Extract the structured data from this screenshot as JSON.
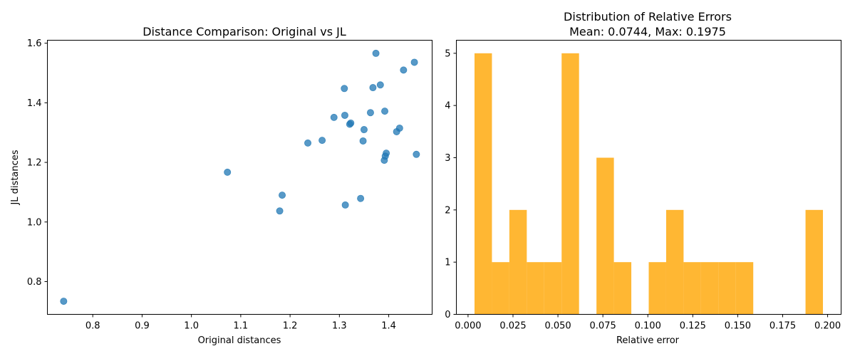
{
  "chart_data": [
    {
      "type": "scatter",
      "title": "Distance Comparison: Original vs JL",
      "xlabel": "Original distances",
      "ylabel": "JL distances",
      "xlim": [
        0.708,
        1.488
      ],
      "ylim": [
        0.69,
        1.61
      ],
      "xticks": [
        0.8,
        0.9,
        1.0,
        1.1,
        1.2,
        1.3,
        1.4
      ],
      "xtick_labels": [
        "0.8",
        "0.9",
        "1.0",
        "1.1",
        "1.2",
        "1.3",
        "1.4"
      ],
      "yticks": [
        0.8,
        1.0,
        1.2,
        1.4,
        1.6
      ],
      "ytick_labels": [
        "0.8",
        "1.0",
        "1.2",
        "1.4",
        "1.6"
      ],
      "color": "#1f77b4",
      "grid": false,
      "points": [
        {
          "x": 0.741,
          "y": 0.734
        },
        {
          "x": 1.073,
          "y": 1.167
        },
        {
          "x": 1.179,
          "y": 1.037
        },
        {
          "x": 1.184,
          "y": 1.09
        },
        {
          "x": 1.236,
          "y": 1.265
        },
        {
          "x": 1.265,
          "y": 1.274
        },
        {
          "x": 1.289,
          "y": 1.351
        },
        {
          "x": 1.31,
          "y": 1.448
        },
        {
          "x": 1.311,
          "y": 1.358
        },
        {
          "x": 1.312,
          "y": 1.057
        },
        {
          "x": 1.321,
          "y": 1.328
        },
        {
          "x": 1.323,
          "y": 1.332
        },
        {
          "x": 1.343,
          "y": 1.079
        },
        {
          "x": 1.348,
          "y": 1.272
        },
        {
          "x": 1.35,
          "y": 1.31
        },
        {
          "x": 1.363,
          "y": 1.367
        },
        {
          "x": 1.368,
          "y": 1.451
        },
        {
          "x": 1.374,
          "y": 1.566
        },
        {
          "x": 1.383,
          "y": 1.46
        },
        {
          "x": 1.391,
          "y": 1.207
        },
        {
          "x": 1.392,
          "y": 1.372
        },
        {
          "x": 1.393,
          "y": 1.221
        },
        {
          "x": 1.395,
          "y": 1.231
        },
        {
          "x": 1.416,
          "y": 1.303
        },
        {
          "x": 1.422,
          "y": 1.315
        },
        {
          "x": 1.43,
          "y": 1.51
        },
        {
          "x": 1.452,
          "y": 1.536
        },
        {
          "x": 1.456,
          "y": 1.227
        }
      ]
    },
    {
      "type": "bar",
      "subtype": "histogram",
      "title_line1": "Distribution of Relative Errors",
      "title_line2": "Mean: 0.0744, Max: 0.1975",
      "xlabel": "Relative error",
      "ylabel": "",
      "xlim": [
        -0.0065,
        0.2075
      ],
      "ylim": [
        0,
        5.25
      ],
      "xticks": [
        0.0,
        0.025,
        0.05,
        0.075,
        0.1,
        0.125,
        0.15,
        0.175,
        0.2
      ],
      "xtick_labels": [
        "0.000",
        "0.025",
        "0.050",
        "0.075",
        "0.100",
        "0.125",
        "0.150",
        "0.175",
        "0.200"
      ],
      "yticks": [
        0,
        1,
        2,
        3,
        4,
        5
      ],
      "ytick_labels": [
        "0",
        "1",
        "2",
        "3",
        "4",
        "5"
      ],
      "color": "#FFA500",
      "bin_start": 0.0036,
      "bin_width": 0.00969,
      "counts": [
        5,
        1,
        2,
        1,
        1,
        5,
        0,
        3,
        1,
        0,
        1,
        2,
        1,
        1,
        1,
        1,
        0,
        0,
        0,
        2
      ],
      "grid": false
    }
  ]
}
